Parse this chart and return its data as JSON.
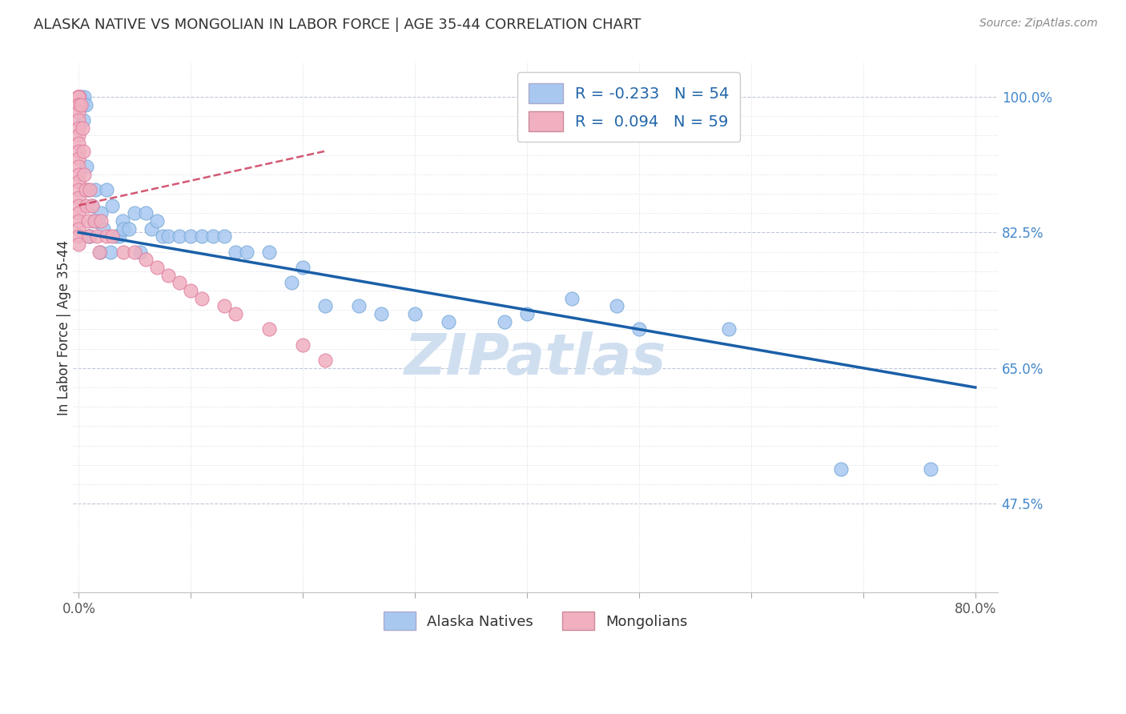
{
  "title": "ALASKA NATIVE VS MONGOLIAN IN LABOR FORCE | AGE 35-44 CORRELATION CHART",
  "source": "Source: ZipAtlas.com",
  "ylabel": "In Labor Force | Age 35-44",
  "xlim": [
    -0.005,
    0.82
  ],
  "ylim": [
    0.36,
    1.045
  ],
  "legend_R_blue": "-0.233",
  "legend_N_blue": "54",
  "legend_R_pink": "0.094",
  "legend_N_pink": "59",
  "blue_color": "#a8c8f0",
  "blue_edge": "#7aaad8",
  "pink_color": "#f0b0c0",
  "pink_edge": "#e080a0",
  "trend_blue_color": "#1a5fa8",
  "trend_pink_color": "#c83050",
  "watermark_text": "ZIPatlas",
  "watermark_color": "#d0dff0",
  "ytick_major": [
    0.475,
    0.65,
    0.825,
    1.0
  ],
  "ytick_minor": [
    0.5,
    0.525,
    0.55,
    0.575,
    0.6,
    0.625,
    0.675,
    0.7,
    0.725,
    0.75,
    0.775,
    0.8,
    0.85,
    0.875,
    0.9,
    0.925,
    0.95,
    0.975
  ],
  "xtick_positions": [
    0.0,
    0.1,
    0.2,
    0.3,
    0.4,
    0.5,
    0.6,
    0.7,
    0.8
  ],
  "alaska_x": [
    0.002,
    0.003,
    0.004,
    0.005,
    0.006,
    0.007,
    0.008,
    0.009,
    0.01,
    0.012,
    0.013,
    0.015,
    0.017,
    0.019,
    0.02,
    0.022,
    0.025,
    0.028,
    0.03,
    0.033,
    0.036,
    0.039,
    0.04,
    0.045,
    0.05,
    0.055,
    0.06,
    0.065,
    0.07,
    0.075,
    0.08,
    0.09,
    0.1,
    0.11,
    0.12,
    0.13,
    0.14,
    0.15,
    0.17,
    0.19,
    0.2,
    0.22,
    0.25,
    0.27,
    0.3,
    0.33,
    0.38,
    0.4,
    0.44,
    0.48,
    0.5,
    0.58,
    0.68,
    0.76
  ],
  "alaska_y": [
    1.0,
    0.99,
    0.97,
    1.0,
    0.99,
    0.91,
    0.88,
    0.82,
    0.82,
    0.86,
    0.84,
    0.88,
    0.84,
    0.8,
    0.85,
    0.83,
    0.88,
    0.8,
    0.86,
    0.82,
    0.82,
    0.84,
    0.83,
    0.83,
    0.85,
    0.8,
    0.85,
    0.83,
    0.84,
    0.82,
    0.82,
    0.82,
    0.82,
    0.82,
    0.82,
    0.82,
    0.8,
    0.8,
    0.8,
    0.76,
    0.78,
    0.73,
    0.73,
    0.72,
    0.72,
    0.71,
    0.71,
    0.72,
    0.74,
    0.73,
    0.7,
    0.7,
    0.52,
    0.52
  ],
  "mongolian_x": [
    0.0,
    0.0,
    0.0,
    0.0,
    0.0,
    0.0,
    0.0,
    0.0,
    0.0,
    0.0,
    0.0,
    0.0,
    0.0,
    0.0,
    0.0,
    0.0,
    0.0,
    0.0,
    0.0,
    0.0,
    0.0,
    0.0,
    0.0,
    0.0,
    0.0,
    0.0,
    0.0,
    0.0,
    0.0,
    0.0,
    0.002,
    0.003,
    0.004,
    0.005,
    0.006,
    0.007,
    0.008,
    0.009,
    0.01,
    0.012,
    0.014,
    0.016,
    0.018,
    0.02,
    0.025,
    0.03,
    0.04,
    0.05,
    0.07,
    0.09,
    0.11,
    0.14,
    0.17,
    0.2,
    0.22,
    0.06,
    0.08,
    0.1,
    0.13
  ],
  "mongolian_y": [
    1.0,
    1.0,
    1.0,
    1.0,
    1.0,
    1.0,
    1.0,
    1.0,
    1.0,
    1.0,
    0.99,
    0.99,
    0.98,
    0.97,
    0.96,
    0.95,
    0.94,
    0.93,
    0.92,
    0.91,
    0.9,
    0.89,
    0.88,
    0.87,
    0.86,
    0.85,
    0.84,
    0.83,
    0.82,
    0.81,
    0.99,
    0.96,
    0.93,
    0.9,
    0.88,
    0.86,
    0.84,
    0.82,
    0.88,
    0.86,
    0.84,
    0.82,
    0.8,
    0.84,
    0.82,
    0.82,
    0.8,
    0.8,
    0.78,
    0.76,
    0.74,
    0.72,
    0.7,
    0.68,
    0.66,
    0.79,
    0.77,
    0.75,
    0.73
  ],
  "blue_trend_x0": 0.0,
  "blue_trend_y0": 0.825,
  "blue_trend_x1": 0.8,
  "blue_trend_y1": 0.625,
  "pink_trend_x0": 0.0,
  "pink_trend_y0": 0.86,
  "pink_trend_x1": 0.22,
  "pink_trend_y1": 0.93
}
